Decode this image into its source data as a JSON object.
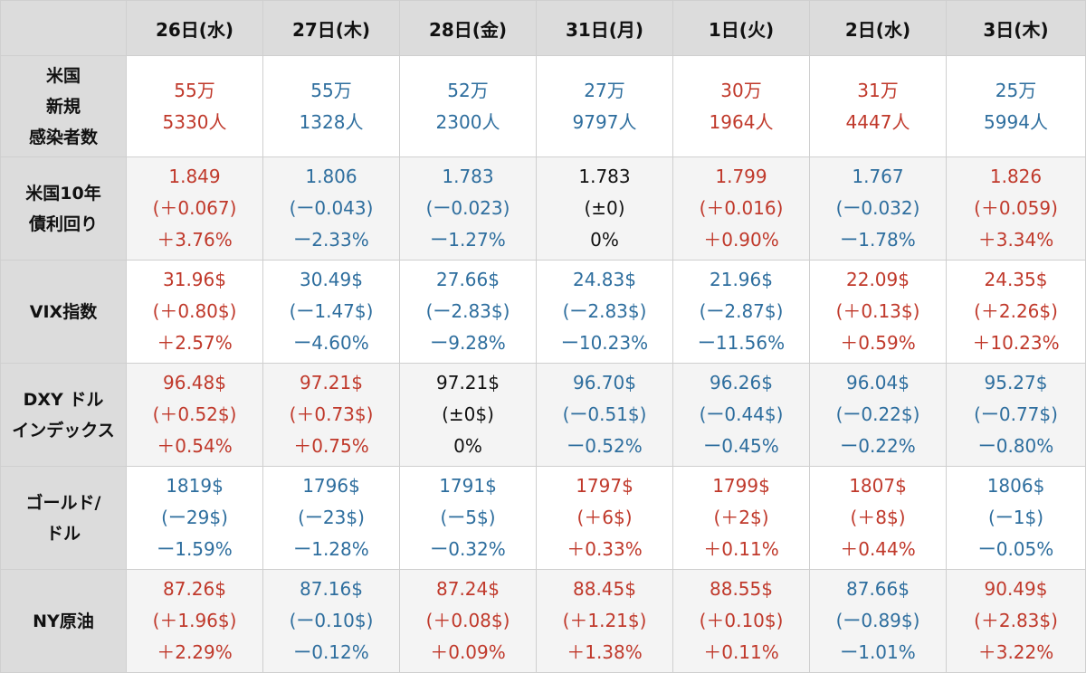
{
  "headers": [
    "26日(水)",
    "27日(木)",
    "28日(金)",
    "31日(月)",
    "1日(火)",
    "2日(水)",
    "3日(木)"
  ],
  "rows": [
    {
      "label": [
        "米国",
        "新規",
        "感染者数"
      ],
      "cells": [
        {
          "lines": [
            "55万",
            "5330人"
          ],
          "trend": "up"
        },
        {
          "lines": [
            "55万",
            "1328人"
          ],
          "trend": "down"
        },
        {
          "lines": [
            "52万",
            "2300人"
          ],
          "trend": "down"
        },
        {
          "lines": [
            "27万",
            "9797人"
          ],
          "trend": "down"
        },
        {
          "lines": [
            "30万",
            "1964人"
          ],
          "trend": "up"
        },
        {
          "lines": [
            "31万",
            "4447人"
          ],
          "trend": "up"
        },
        {
          "lines": [
            "25万",
            "5994人"
          ],
          "trend": "down"
        }
      ]
    },
    {
      "label": [
        "米国10年",
        "債利回り"
      ],
      "cells": [
        {
          "lines": [
            "1.849",
            "(＋0.067)",
            "＋3.76%"
          ],
          "trend": "up"
        },
        {
          "lines": [
            "1.806",
            "(ー0.043)",
            "ー2.33%"
          ],
          "trend": "down"
        },
        {
          "lines": [
            "1.783",
            "(ー0.023)",
            "ー1.27%"
          ],
          "trend": "down"
        },
        {
          "lines": [
            "1.783",
            "(±0)",
            "0%"
          ],
          "trend": "flat"
        },
        {
          "lines": [
            "1.799",
            "(＋0.016)",
            "＋0.90%"
          ],
          "trend": "up"
        },
        {
          "lines": [
            "1.767",
            "(ー0.032)",
            "ー1.78%"
          ],
          "trend": "down"
        },
        {
          "lines": [
            "1.826",
            "(＋0.059)",
            "＋3.34%"
          ],
          "trend": "up"
        }
      ]
    },
    {
      "label": [
        "VIX指数"
      ],
      "cells": [
        {
          "lines": [
            "31.96$",
            "(＋0.80$)",
            "＋2.57%"
          ],
          "trend": "up"
        },
        {
          "lines": [
            "30.49$",
            "(ー1.47$)",
            "ー4.60%"
          ],
          "trend": "down"
        },
        {
          "lines": [
            "27.66$",
            "(ー2.83$)",
            "ー9.28%"
          ],
          "trend": "down"
        },
        {
          "lines": [
            "24.83$",
            "(ー2.83$)",
            "ー10.23%"
          ],
          "trend": "down"
        },
        {
          "lines": [
            "21.96$",
            "(ー2.87$)",
            "ー11.56%"
          ],
          "trend": "down"
        },
        {
          "lines": [
            "22.09$",
            "(＋0.13$)",
            "＋0.59%"
          ],
          "trend": "up"
        },
        {
          "lines": [
            "24.35$",
            "(＋2.26$)",
            "＋10.23%"
          ],
          "trend": "up"
        }
      ]
    },
    {
      "label": [
        "DXY ドル",
        "インデックス"
      ],
      "cells": [
        {
          "lines": [
            "96.48$",
            "(＋0.52$)",
            "＋0.54%"
          ],
          "trend": "up"
        },
        {
          "lines": [
            "97.21$",
            "(＋0.73$)",
            "＋0.75%"
          ],
          "trend": "up"
        },
        {
          "lines": [
            "97.21$",
            "(±0$)",
            "0%"
          ],
          "trend": "flat"
        },
        {
          "lines": [
            "96.70$",
            "(ー0.51$)",
            "ー0.52%"
          ],
          "trend": "down"
        },
        {
          "lines": [
            "96.26$",
            "(ー0.44$)",
            "ー0.45%"
          ],
          "trend": "down"
        },
        {
          "lines": [
            "96.04$",
            "(ー0.22$)",
            "ー0.22%"
          ],
          "trend": "down"
        },
        {
          "lines": [
            "95.27$",
            "(ー0.77$)",
            "ー0.80%"
          ],
          "trend": "down"
        }
      ]
    },
    {
      "label": [
        "ゴールド/",
        "ドル"
      ],
      "cells": [
        {
          "lines": [
            "1819$",
            "(ー29$)",
            "ー1.59%"
          ],
          "trend": "down"
        },
        {
          "lines": [
            "1796$",
            "(ー23$)",
            "ー1.28%"
          ],
          "trend": "down"
        },
        {
          "lines": [
            "1791$",
            "(ー5$)",
            "ー0.32%"
          ],
          "trend": "down"
        },
        {
          "lines": [
            "1797$",
            "(＋6$)",
            "＋0.33%"
          ],
          "trend": "up"
        },
        {
          "lines": [
            "1799$",
            "(＋2$)",
            "＋0.11%"
          ],
          "trend": "up"
        },
        {
          "lines": [
            "1807$",
            "(＋8$)",
            "＋0.44%"
          ],
          "trend": "up"
        },
        {
          "lines": [
            "1806$",
            "(ー1$)",
            "ー0.05%"
          ],
          "trend": "down"
        }
      ]
    },
    {
      "label": [
        "NY原油"
      ],
      "cells": [
        {
          "lines": [
            "87.26$",
            "(＋1.96$)",
            "＋2.29%"
          ],
          "trend": "up"
        },
        {
          "lines": [
            "87.16$",
            "(ー0.10$)",
            "ー0.12%"
          ],
          "trend": "down"
        },
        {
          "lines": [
            "87.24$",
            "(＋0.08$)",
            "＋0.09%"
          ],
          "trend": "up"
        },
        {
          "lines": [
            "88.45$",
            "(＋1.21$)",
            "＋1.38%"
          ],
          "trend": "up"
        },
        {
          "lines": [
            "88.55$",
            "(＋0.10$)",
            "＋0.11%"
          ],
          "trend": "up"
        },
        {
          "lines": [
            "87.66$",
            "(ー0.89$)",
            "ー1.01%"
          ],
          "trend": "down"
        },
        {
          "lines": [
            "90.49$",
            "(＋2.83$)",
            "＋3.22%"
          ],
          "trend": "up"
        }
      ]
    }
  ],
  "colors": {
    "up": "#c0392b",
    "down": "#2e6e9e",
    "flat": "#111111",
    "header_bg": "#dcdcdc"
  }
}
